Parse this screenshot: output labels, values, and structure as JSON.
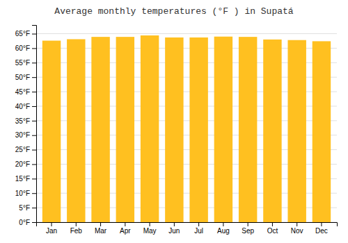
{
  "chart_data": {
    "type": "bar",
    "title": "Average monthly temperatures (°F ) in Supatá",
    "categories": [
      "Jan",
      "Feb",
      "Mar",
      "Apr",
      "May",
      "Jun",
      "Jul",
      "Aug",
      "Sep",
      "Oct",
      "Nov",
      "Dec"
    ],
    "values": [
      62.6,
      63.1,
      63.9,
      63.9,
      64.4,
      63.7,
      63.7,
      64.0,
      63.9,
      63.0,
      62.8,
      62.4
    ],
    "color": "#FFC020",
    "ylim": [
      0,
      68
    ],
    "yticks": [
      {
        "value": 0,
        "label": "0°F"
      },
      {
        "value": 5,
        "label": "5°F"
      },
      {
        "value": 10,
        "label": "10°F"
      },
      {
        "value": 15,
        "label": "15°F"
      },
      {
        "value": 20,
        "label": "20°F"
      },
      {
        "value": 25,
        "label": "25°F"
      },
      {
        "value": 30,
        "label": "30°F"
      },
      {
        "value": 35,
        "label": "35°F"
      },
      {
        "value": 40,
        "label": "40°F"
      },
      {
        "value": 45,
        "label": "45°F"
      },
      {
        "value": 50,
        "label": "50°F"
      },
      {
        "value": 55,
        "label": "55°F"
      },
      {
        "value": 60,
        "label": "60°F"
      },
      {
        "value": 65,
        "label": "65°F"
      }
    ],
    "grid": true
  }
}
